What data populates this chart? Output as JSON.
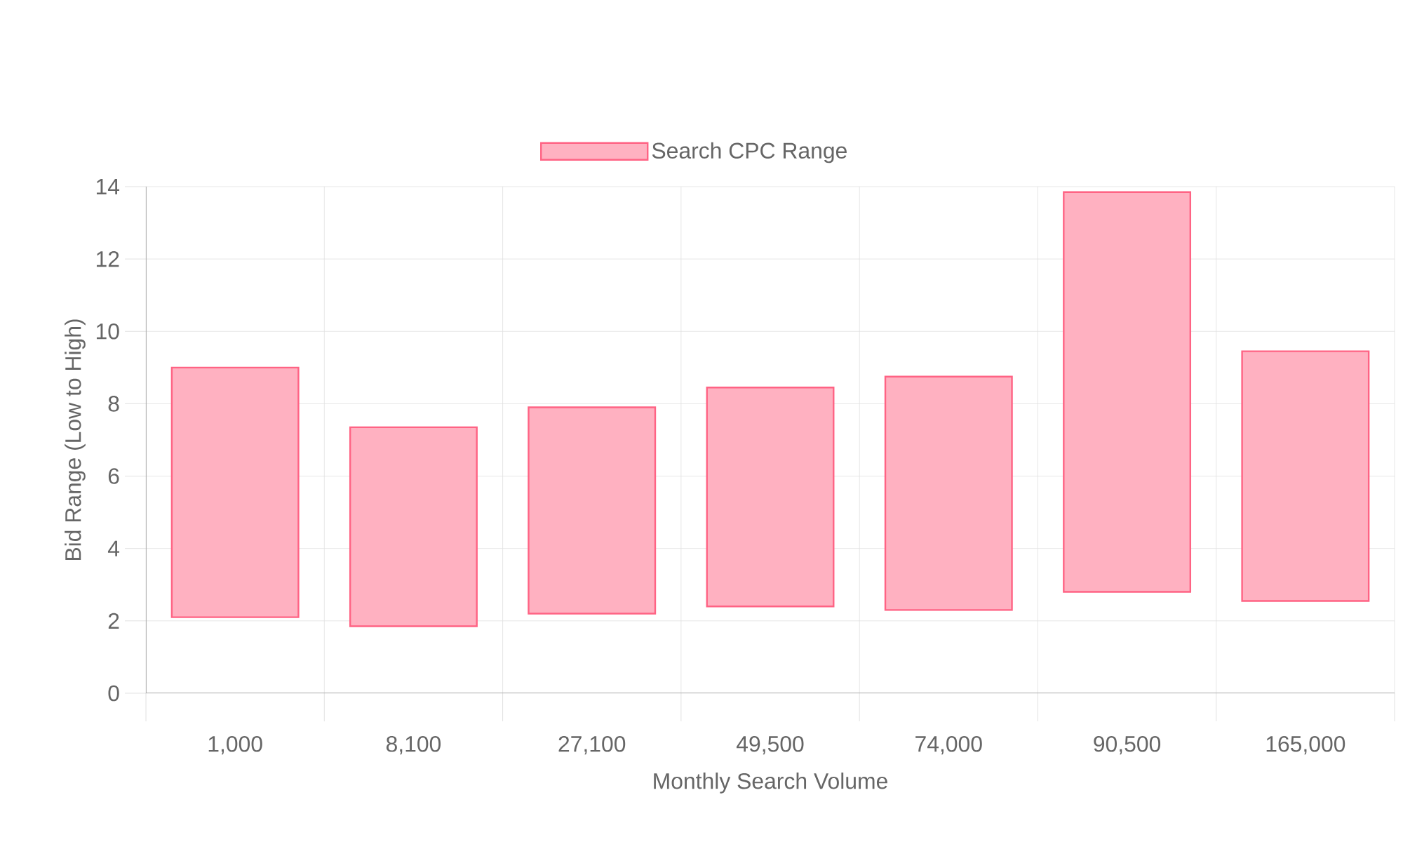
{
  "chart_data": {
    "type": "bar",
    "xlabel": "Monthly Search Volume",
    "ylabel": "Bid Range (Low to High)",
    "categories": [
      "1,000",
      "8,100",
      "27,100",
      "49,500",
      "74,000",
      "90,500",
      "165,000"
    ],
    "series": [
      {
        "name": "Search CPC Range",
        "color": "#ff6384",
        "base": [
          2.1,
          1.85,
          2.2,
          2.4,
          2.3,
          2.8,
          2.55
        ],
        "values": [
          6.9,
          5.5,
          5.7,
          6.05,
          6.45,
          11.05,
          6.9
        ]
      }
    ],
    "ylim": [
      0,
      14
    ],
    "yticks": [
      0,
      2,
      4,
      6,
      8,
      10,
      12,
      14
    ],
    "grid": true,
    "legend": "top"
  }
}
